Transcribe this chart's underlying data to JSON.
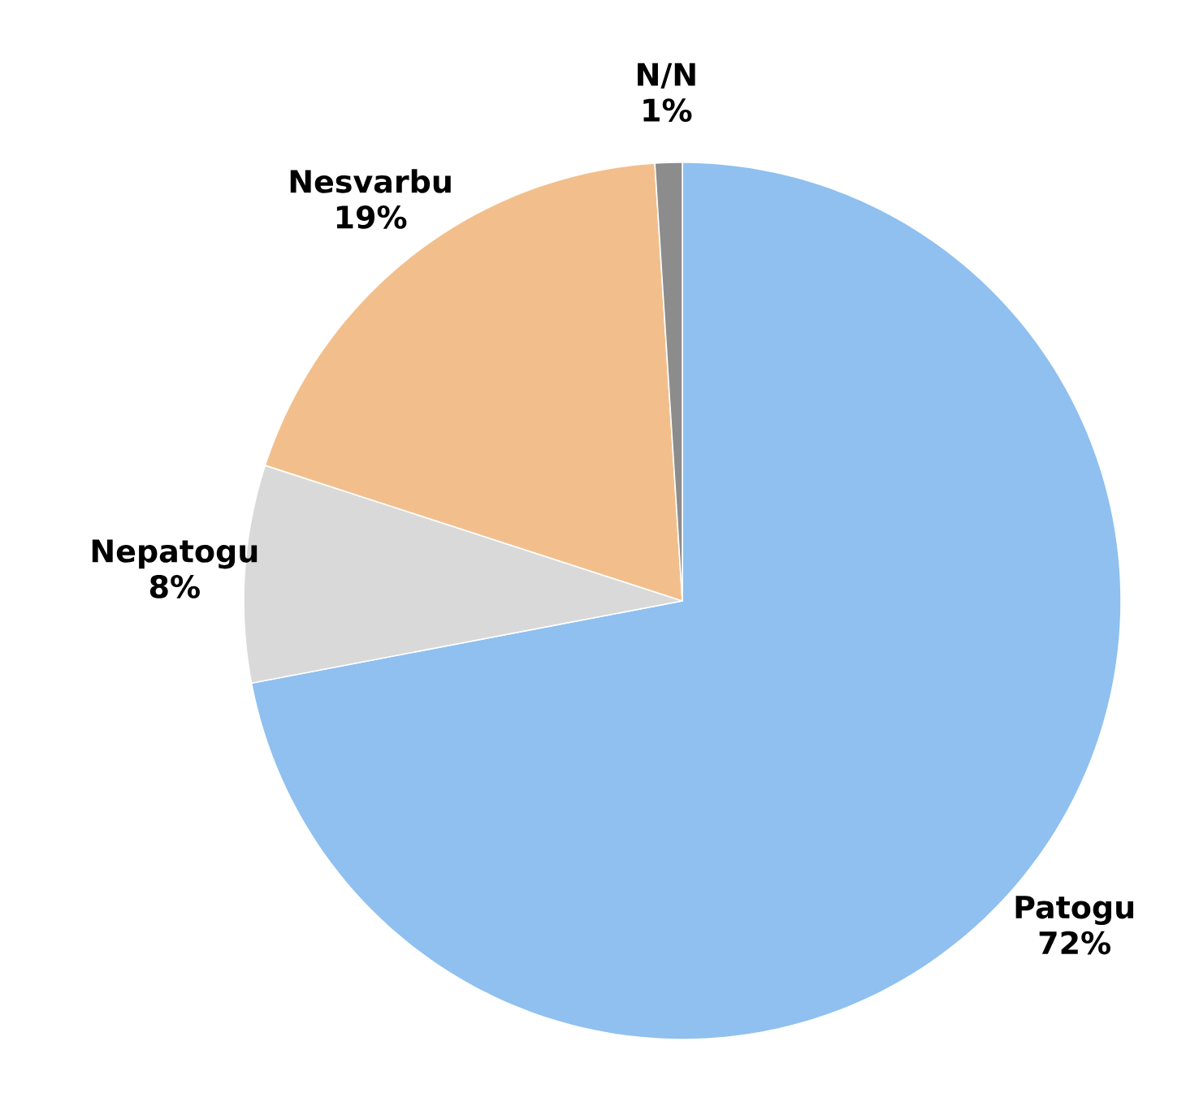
{
  "chart_data": {
    "type": "pie",
    "categories": [
      "Patogu",
      "Nepatogu",
      "Nesvarbu",
      "N/N"
    ],
    "values": [
      72,
      8,
      19,
      1
    ],
    "value_labels": [
      "72%",
      "8%",
      "19%",
      "1%"
    ],
    "colors": [
      "#8fc0ef",
      "#d9d9d9",
      "#f2bf8c",
      "#8c8c8c"
    ]
  }
}
